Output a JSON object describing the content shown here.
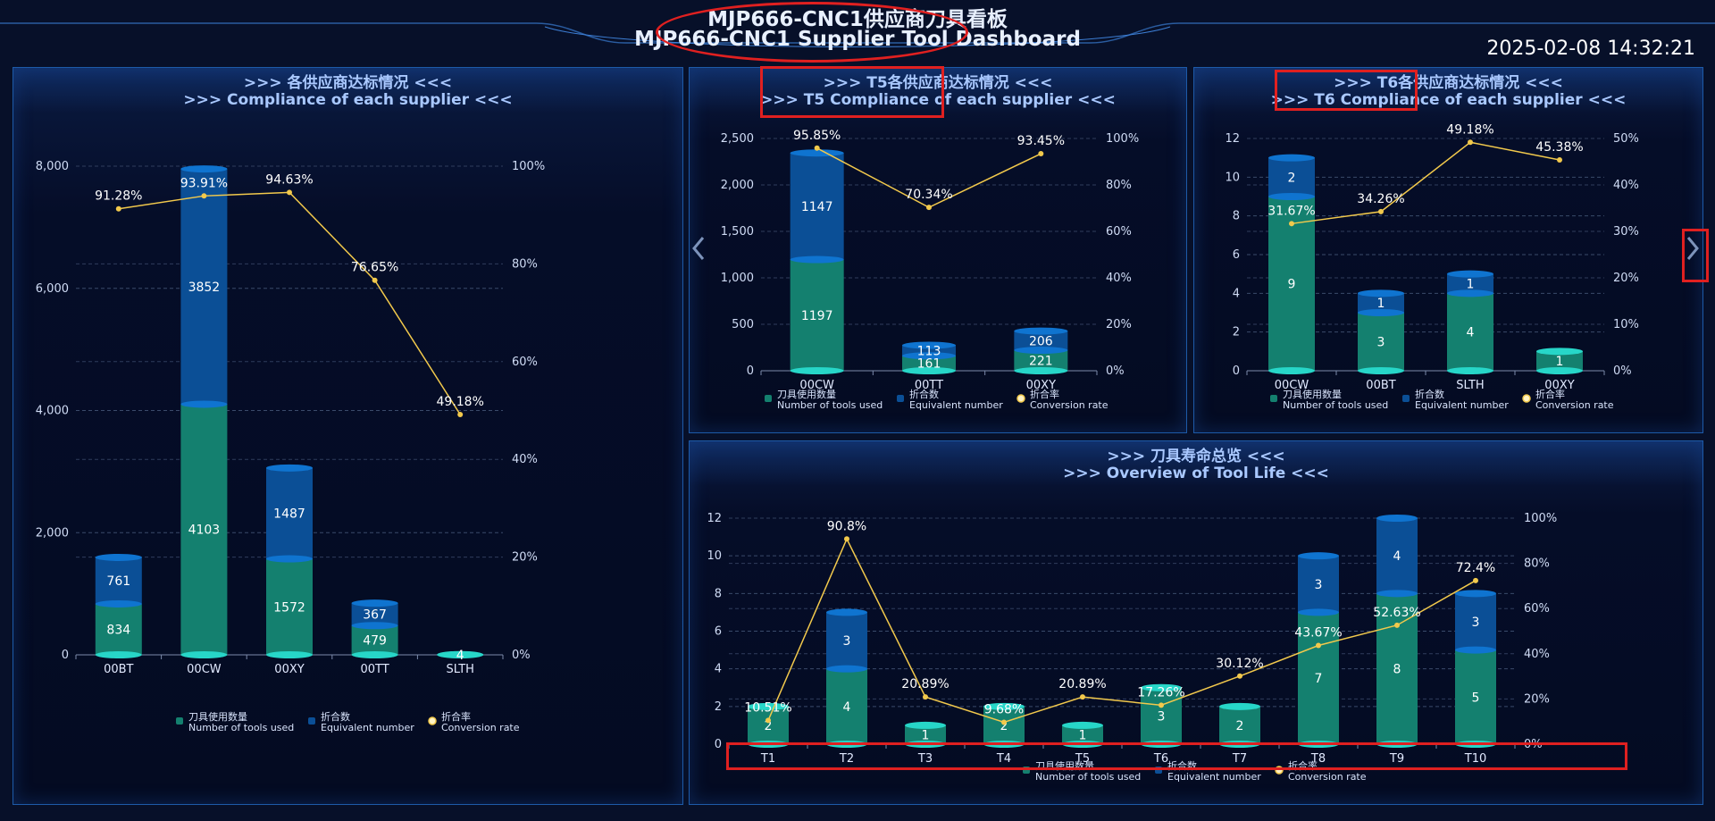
{
  "header": {
    "title_cn": "MJP666-CNC1供应商刀具看板",
    "title_en": "MJP666-CNC1 Supplier Tool Dashboard",
    "datetime": "2025-02-08 14:32:21"
  },
  "colors": {
    "used": "#14806f",
    "used_top": "#27d6c8",
    "equiv": "#0b4f96",
    "equiv_top": "#0f74d0",
    "rate": "#f2c94c",
    "grid": "#3a4a6a",
    "annotation": "#e02020"
  },
  "legend": {
    "used_cn": "刀具使用数量",
    "used_en": "Number of tools used",
    "equiv_cn": "折合数",
    "equiv_en": "Equivalent number",
    "rate_cn": "折合率",
    "rate_en": "Conversion rate"
  },
  "nav": {
    "prev_icon": "chevron-left-icon",
    "next_icon": "chevron-right-icon"
  },
  "chart_data": [
    {
      "type": "bar",
      "title_cn": ">>> 各供应商达标情况 <<<",
      "title_en": ">>> Compliance of each supplier <<<",
      "categories": [
        "00BT",
        "00CW",
        "00XY",
        "00TT",
        "SLTH"
      ],
      "series": [
        {
          "name": "刀具使用数量 Number of tools used",
          "values": [
            834,
            4103,
            1572,
            479,
            4
          ]
        },
        {
          "name": "折合数 Equivalent number",
          "values": [
            761,
            3852,
            1487,
            367,
            0
          ]
        },
        {
          "name": "折合率 Conversion rate",
          "values": [
            91.28,
            93.91,
            94.63,
            76.65,
            49.18
          ]
        }
      ],
      "used_labels": [
        "834",
        "4103",
        "1572",
        "479",
        "4"
      ],
      "equiv_labels": [
        "761",
        "3852",
        "1487",
        "367",
        ""
      ],
      "rate_labels": [
        "91.28%",
        "93.91%",
        "94.63%",
        "76.65%",
        "49.18%"
      ],
      "ylim": [
        0,
        8000
      ],
      "yticks": [
        0,
        2000,
        4000,
        6000,
        8000
      ],
      "ytick_labels": [
        "0",
        "2,000",
        "4,000",
        "6,000",
        "8,000"
      ],
      "y2lim": [
        0,
        100
      ],
      "y2ticks": [
        0,
        20,
        40,
        60,
        80,
        100
      ],
      "y2tick_labels": [
        "0%",
        "20%",
        "40%",
        "60%",
        "80%",
        "100%"
      ],
      "legend": "bottom-center",
      "grid": true
    },
    {
      "type": "bar",
      "title_cn": ">>> T5各供应商达标情况 <<<",
      "title_en": ">>> T5 Compliance of each supplier <<<",
      "categories": [
        "00CW",
        "00TT",
        "00XY"
      ],
      "series": [
        {
          "name": "刀具使用数量 Number of tools used",
          "values": [
            1197,
            161,
            221
          ]
        },
        {
          "name": "折合数 Equivalent number",
          "values": [
            1147,
            113,
            206
          ]
        },
        {
          "name": "折合率 Conversion rate",
          "values": [
            95.85,
            70.34,
            93.45
          ]
        }
      ],
      "used_labels": [
        "1197",
        "161",
        "221"
      ],
      "equiv_labels": [
        "1147",
        "113",
        "206"
      ],
      "rate_labels": [
        "95.85%",
        "70.34%",
        "93.45%"
      ],
      "ylim": [
        0,
        2500
      ],
      "yticks": [
        0,
        500,
        1000,
        1500,
        2000,
        2500
      ],
      "ytick_labels": [
        "0",
        "500",
        "1,000",
        "1,500",
        "2,000",
        "2,500"
      ],
      "y2lim": [
        0,
        100
      ],
      "y2ticks": [
        0,
        20,
        40,
        60,
        80,
        100
      ],
      "y2tick_labels": [
        "0%",
        "20%",
        "40%",
        "60%",
        "80%",
        "100%"
      ],
      "legend": "bottom-center",
      "grid": true
    },
    {
      "type": "bar",
      "title_cn": ">>> T6各供应商达标情况 <<<",
      "title_en": ">>> T6 Compliance of each supplier <<<",
      "categories": [
        "00CW",
        "00BT",
        "SLTH",
        "00XY"
      ],
      "series": [
        {
          "name": "刀具使用数量 Number of tools used",
          "values": [
            9,
            3,
            4,
            1
          ]
        },
        {
          "name": "折合数 Equivalent number",
          "values": [
            2,
            1,
            1,
            0
          ]
        },
        {
          "name": "折合率 Conversion rate",
          "values": [
            31.67,
            34.26,
            49.18,
            45.38
          ]
        }
      ],
      "used_labels": [
        "9",
        "3",
        "4",
        "1"
      ],
      "equiv_labels": [
        "2",
        "1",
        "1",
        ""
      ],
      "rate_labels": [
        "31.67%",
        "34.26%",
        "49.18%",
        "45.38%"
      ],
      "ylim": [
        0,
        12
      ],
      "yticks": [
        0,
        2,
        4,
        6,
        8,
        10,
        12
      ],
      "ytick_labels": [
        "0",
        "2",
        "4",
        "6",
        "8",
        "10",
        "12"
      ],
      "y2lim": [
        0,
        50
      ],
      "y2ticks": [
        0,
        10,
        20,
        30,
        40,
        50
      ],
      "y2tick_labels": [
        "0%",
        "10%",
        "20%",
        "30%",
        "40%",
        "50%"
      ],
      "legend": "bottom-center",
      "grid": true
    },
    {
      "type": "bar",
      "title_cn": ">>> 刀具寿命总览 <<<",
      "title_en": ">>> Overview of Tool Life <<<",
      "categories": [
        "T1",
        "T2",
        "T3",
        "T4",
        "T5",
        "T6",
        "T7",
        "T8",
        "T9",
        "T10"
      ],
      "series": [
        {
          "name": "刀具使用数量 Number of tools used",
          "values": [
            2,
            4,
            1,
            2,
            1,
            3,
            2,
            7,
            8,
            5
          ]
        },
        {
          "name": "折合数 Equivalent number",
          "values": [
            0,
            3,
            0,
            0,
            0,
            0,
            0,
            3,
            4,
            3
          ]
        },
        {
          "name": "折合率 Conversion rate",
          "values": [
            10.51,
            90.8,
            20.89,
            9.68,
            20.89,
            17.26,
            30.12,
            43.67,
            52.63,
            72.4
          ]
        }
      ],
      "used_labels": [
        "2",
        "4",
        "1",
        "2",
        "1",
        "3",
        "2",
        "7",
        "8",
        "5"
      ],
      "equiv_labels": [
        "",
        "3",
        "",
        "",
        "",
        "",
        "",
        "3",
        "4",
        "3"
      ],
      "rate_labels": [
        "10.51%",
        "90.8%",
        "20.89%",
        "9.68%",
        "20.89%",
        "17.26%",
        "30.12%",
        "43.67%",
        "52.63%",
        "72.4%"
      ],
      "ylim": [
        0,
        12
      ],
      "yticks": [
        0,
        2,
        4,
        6,
        8,
        10,
        12
      ],
      "ytick_labels": [
        "0",
        "2",
        "4",
        "6",
        "8",
        "10",
        "12"
      ],
      "y2lim": [
        0,
        100
      ],
      "y2ticks": [
        0,
        20,
        40,
        60,
        80,
        100
      ],
      "y2tick_labels": [
        "0%",
        "20%",
        "40%",
        "60%",
        "80%",
        "100%"
      ],
      "legend": "bottom-center",
      "grid": true
    }
  ]
}
